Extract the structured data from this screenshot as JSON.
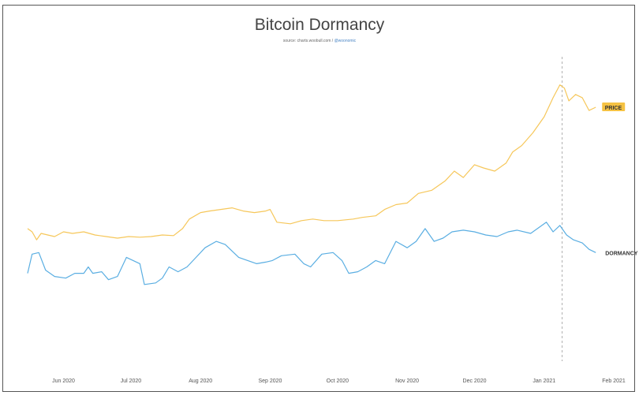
{
  "colors": {
    "price": "#f6c75a",
    "dormancy": "#5aaee2",
    "marker": "#b0b0b0",
    "label_bg": "#f5c243"
  },
  "chart_data": {
    "type": "line",
    "title": "Bitcoin Dormancy",
    "source": {
      "text": "source: charts.woobull.com / ",
      "handle": "@woonomic"
    },
    "xlabel": "",
    "ylabel": "",
    "x_range": [
      "2020-05-16",
      "2021-02-01"
    ],
    "x_ticks": [
      {
        "date": "2020-06-01",
        "label": "Jun 2020"
      },
      {
        "date": "2020-07-01",
        "label": "Jul 2020"
      },
      {
        "date": "2020-08-01",
        "label": "Aug 2020"
      },
      {
        "date": "2020-09-01",
        "label": "Sep 2020"
      },
      {
        "date": "2020-10-01",
        "label": "Oct 2020"
      },
      {
        "date": "2020-11-01",
        "label": "Nov 2020"
      },
      {
        "date": "2020-12-01",
        "label": "Dec 2020"
      },
      {
        "date": "2021-01-01",
        "label": "Jan 2021"
      },
      {
        "date": "2021-02-01",
        "label": "Feb 2021"
      }
    ],
    "marker_date": "2021-01-09",
    "grid": false,
    "legend": "inline labels at line ends",
    "y_range": [
      0,
      1
    ],
    "series": [
      {
        "name": "PRICE",
        "points": [
          [
            "2020-05-16",
            0.42
          ],
          [
            "2020-05-18",
            0.41
          ],
          [
            "2020-05-20",
            0.385
          ],
          [
            "2020-05-22",
            0.405
          ],
          [
            "2020-05-25",
            0.4
          ],
          [
            "2020-05-28",
            0.395
          ],
          [
            "2020-06-01",
            0.41
          ],
          [
            "2020-06-05",
            0.405
          ],
          [
            "2020-06-10",
            0.41
          ],
          [
            "2020-06-15",
            0.4
          ],
          [
            "2020-06-20",
            0.395
          ],
          [
            "2020-06-25",
            0.39
          ],
          [
            "2020-06-30",
            0.395
          ],
          [
            "2020-07-05",
            0.393
          ],
          [
            "2020-07-10",
            0.395
          ],
          [
            "2020-07-15",
            0.4
          ],
          [
            "2020-07-20",
            0.398
          ],
          [
            "2020-07-24",
            0.42
          ],
          [
            "2020-07-27",
            0.45
          ],
          [
            "2020-08-01",
            0.47
          ],
          [
            "2020-08-05",
            0.475
          ],
          [
            "2020-08-10",
            0.48
          ],
          [
            "2020-08-15",
            0.485
          ],
          [
            "2020-08-20",
            0.475
          ],
          [
            "2020-08-25",
            0.47
          ],
          [
            "2020-08-30",
            0.475
          ],
          [
            "2020-09-01",
            0.48
          ],
          [
            "2020-09-04",
            0.44
          ],
          [
            "2020-09-10",
            0.435
          ],
          [
            "2020-09-15",
            0.445
          ],
          [
            "2020-09-20",
            0.45
          ],
          [
            "2020-09-25",
            0.445
          ],
          [
            "2020-10-01",
            0.445
          ],
          [
            "2020-10-08",
            0.45
          ],
          [
            "2020-10-12",
            0.455
          ],
          [
            "2020-10-18",
            0.46
          ],
          [
            "2020-10-22",
            0.48
          ],
          [
            "2020-10-27",
            0.495
          ],
          [
            "2020-11-01",
            0.5
          ],
          [
            "2020-11-06",
            0.53
          ],
          [
            "2020-11-12",
            0.54
          ],
          [
            "2020-11-18",
            0.57
          ],
          [
            "2020-11-22",
            0.6
          ],
          [
            "2020-11-26",
            0.58
          ],
          [
            "2020-12-01",
            0.62
          ],
          [
            "2020-12-05",
            0.61
          ],
          [
            "2020-12-10",
            0.6
          ],
          [
            "2020-12-15",
            0.625
          ],
          [
            "2020-12-18",
            0.66
          ],
          [
            "2020-12-22",
            0.68
          ],
          [
            "2020-12-27",
            0.72
          ],
          [
            "2021-01-01",
            0.77
          ],
          [
            "2021-01-05",
            0.83
          ],
          [
            "2021-01-08",
            0.87
          ],
          [
            "2021-01-10",
            0.86
          ],
          [
            "2021-01-12",
            0.82
          ],
          [
            "2021-01-15",
            0.84
          ],
          [
            "2021-01-18",
            0.83
          ],
          [
            "2021-01-21",
            0.79
          ],
          [
            "2021-01-24",
            0.8
          ]
        ]
      },
      {
        "name": "DORMANCY",
        "points": [
          [
            "2020-05-16",
            0.28
          ],
          [
            "2020-05-18",
            0.34
          ],
          [
            "2020-05-21",
            0.345
          ],
          [
            "2020-05-24",
            0.29
          ],
          [
            "2020-05-28",
            0.27
          ],
          [
            "2020-06-02",
            0.265
          ],
          [
            "2020-06-06",
            0.28
          ],
          [
            "2020-06-10",
            0.28
          ],
          [
            "2020-06-12",
            0.3
          ],
          [
            "2020-06-14",
            0.28
          ],
          [
            "2020-06-18",
            0.285
          ],
          [
            "2020-06-21",
            0.26
          ],
          [
            "2020-06-25",
            0.27
          ],
          [
            "2020-06-29",
            0.33
          ],
          [
            "2020-07-02",
            0.32
          ],
          [
            "2020-07-05",
            0.31
          ],
          [
            "2020-07-07",
            0.245
          ],
          [
            "2020-07-12",
            0.25
          ],
          [
            "2020-07-15",
            0.265
          ],
          [
            "2020-07-18",
            0.3
          ],
          [
            "2020-07-22",
            0.285
          ],
          [
            "2020-07-26",
            0.3
          ],
          [
            "2020-07-30",
            0.33
          ],
          [
            "2020-08-03",
            0.36
          ],
          [
            "2020-08-08",
            0.38
          ],
          [
            "2020-08-12",
            0.37
          ],
          [
            "2020-08-18",
            0.33
          ],
          [
            "2020-08-22",
            0.32
          ],
          [
            "2020-08-26",
            0.31
          ],
          [
            "2020-08-30",
            0.315
          ],
          [
            "2020-09-02",
            0.32
          ],
          [
            "2020-09-06",
            0.335
          ],
          [
            "2020-09-12",
            0.34
          ],
          [
            "2020-09-16",
            0.31
          ],
          [
            "2020-09-19",
            0.3
          ],
          [
            "2020-09-24",
            0.34
          ],
          [
            "2020-09-29",
            0.345
          ],
          [
            "2020-10-03",
            0.32
          ],
          [
            "2020-10-06",
            0.28
          ],
          [
            "2020-10-10",
            0.285
          ],
          [
            "2020-10-14",
            0.3
          ],
          [
            "2020-10-18",
            0.32
          ],
          [
            "2020-10-22",
            0.31
          ],
          [
            "2020-10-27",
            0.38
          ],
          [
            "2020-11-01",
            0.36
          ],
          [
            "2020-11-05",
            0.38
          ],
          [
            "2020-11-09",
            0.42
          ],
          [
            "2020-11-13",
            0.38
          ],
          [
            "2020-11-17",
            0.39
          ],
          [
            "2020-11-21",
            0.41
          ],
          [
            "2020-11-26",
            0.415
          ],
          [
            "2020-12-01",
            0.41
          ],
          [
            "2020-12-06",
            0.4
          ],
          [
            "2020-12-11",
            0.395
          ],
          [
            "2020-12-16",
            0.41
          ],
          [
            "2020-12-20",
            0.415
          ],
          [
            "2020-12-26",
            0.405
          ],
          [
            "2021-01-02",
            0.44
          ],
          [
            "2021-01-05",
            0.41
          ],
          [
            "2021-01-08",
            0.43
          ],
          [
            "2021-01-11",
            0.4
          ],
          [
            "2021-01-14",
            0.385
          ],
          [
            "2021-01-18",
            0.375
          ],
          [
            "2021-01-21",
            0.355
          ],
          [
            "2021-01-24",
            0.345
          ]
        ]
      }
    ]
  }
}
